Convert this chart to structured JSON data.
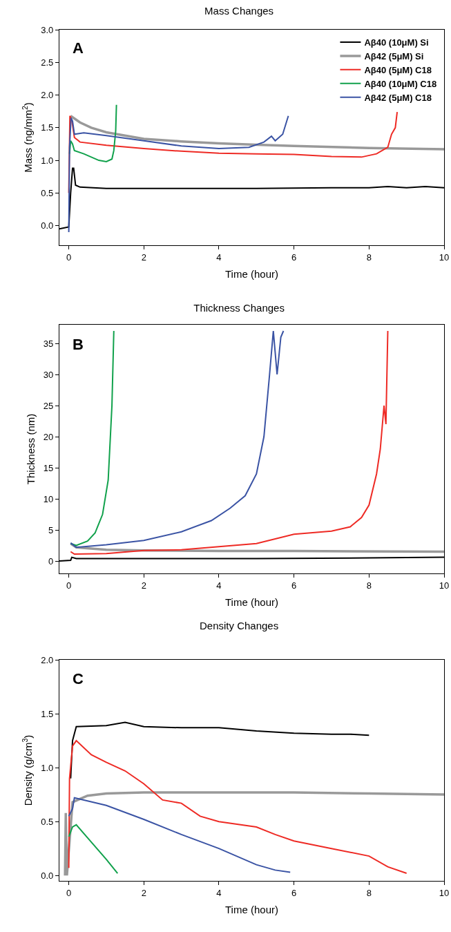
{
  "chart_data": [
    {
      "type": "line",
      "title": "Mass Changes",
      "xlabel": "Time (hour)",
      "ylabel": "Mass (ng/mm$^{2}$)",
      "annotations": [
        "A"
      ],
      "legend": "top right",
      "grid": false,
      "xlim": [
        -0.25,
        10
      ],
      "xticks": [
        0,
        2,
        4,
        6,
        8,
        10
      ],
      "ylim": [
        -0.3,
        3.0
      ],
      "yticks": [
        {
          "value": 0,
          "label": "0.0"
        },
        0.5,
        {
          "value": 1,
          "label": "1.0"
        },
        1.5,
        {
          "value": 2,
          "label": "2.0"
        },
        2.5,
        {
          "value": 3,
          "label": "3.0"
        }
      ],
      "series": [
        {
          "name": "Aβ40 (10μM) Si",
          "color": "#000000",
          "x": [
            -0.25,
            0,
            0.05,
            0.1,
            0.13,
            0.18,
            0.3,
            1,
            3,
            5,
            7,
            8,
            8.5,
            9,
            9.5,
            10
          ],
          "values": [
            -0.05,
            -0.02,
            0.5,
            0.88,
            0.88,
            0.62,
            0.59,
            0.57,
            0.57,
            0.57,
            0.58,
            0.58,
            0.6,
            0.58,
            0.6,
            0.58
          ]
        },
        {
          "name": "Aβ42 (5μM) Si",
          "color": "#999999",
          "x": [
            0.05,
            0.3,
            0.6,
            1,
            2,
            3,
            4,
            5,
            6,
            8,
            10
          ],
          "values": [
            1.68,
            1.58,
            1.5,
            1.43,
            1.33,
            1.29,
            1.26,
            1.24,
            1.22,
            1.19,
            1.17
          ]
        },
        {
          "name": "Aβ40 (5μM) C18",
          "color": "#ee2a24",
          "x": [
            0,
            0.03,
            0.08,
            0.15,
            0.3,
            1,
            2,
            3,
            4,
            5,
            6,
            7,
            7.8,
            8.2,
            8.5,
            8.6,
            8.7,
            8.75
          ],
          "values": [
            0.5,
            1.68,
            1.62,
            1.35,
            1.28,
            1.23,
            1.18,
            1.14,
            1.11,
            1.1,
            1.09,
            1.06,
            1.05,
            1.1,
            1.2,
            1.4,
            1.5,
            1.74
          ]
        },
        {
          "name": "Aβ40 (10μM) C18",
          "color": "#10a14b",
          "x": [
            0.02,
            0.05,
            0.1,
            0.15,
            0.4,
            0.8,
            1.0,
            1.15,
            1.2,
            1.25,
            1.27
          ],
          "values": [
            1.1,
            1.3,
            1.25,
            1.15,
            1.1,
            1.0,
            0.98,
            1.02,
            1.15,
            1.45,
            1.85
          ]
        },
        {
          "name": "Aβ42 (5μM) C18",
          "color": "#3a53a4",
          "x": [
            0,
            0.02,
            0.06,
            0.1,
            0.15,
            0.4,
            1,
            2,
            3,
            4,
            4.8,
            5.2,
            5.4,
            5.5,
            5.7,
            5.85
          ],
          "values": [
            -0.1,
            1.2,
            1.65,
            1.6,
            1.4,
            1.42,
            1.38,
            1.3,
            1.22,
            1.18,
            1.2,
            1.28,
            1.37,
            1.3,
            1.4,
            1.68
          ]
        }
      ]
    },
    {
      "type": "line",
      "title": "Thickness Changes",
      "xlabel": "Time (hour)",
      "ylabel": "Thickness (nm)",
      "annotations": [
        "B"
      ],
      "grid": false,
      "xlim": [
        -0.25,
        10
      ],
      "xticks": [
        0,
        2,
        4,
        6,
        8,
        10
      ],
      "ylim": [
        -2,
        38
      ],
      "yticks": [
        0,
        5,
        10,
        15,
        20,
        25,
        30,
        35
      ],
      "series": [
        {
          "color": "#000000",
          "x": [
            -0.25,
            0.05,
            0.08,
            0.2,
            2,
            5,
            8,
            10
          ],
          "values": [
            0,
            0.1,
            0.6,
            0.4,
            0.4,
            0.4,
            0.5,
            0.6
          ]
        },
        {
          "color": "#999999",
          "x": [
            0.05,
            0.2,
            1,
            2,
            4,
            6,
            10
          ],
          "values": [
            2.8,
            2.2,
            1.8,
            1.7,
            1.6,
            1.6,
            1.5
          ]
        },
        {
          "color": "#ee2a24",
          "x": [
            0.05,
            0.15,
            1,
            2,
            3,
            4,
            5,
            6,
            7,
            7.5,
            7.8,
            8.0,
            8.2,
            8.3,
            8.4,
            8.45,
            8.5
          ],
          "values": [
            1.5,
            1.1,
            1.2,
            1.7,
            1.8,
            2.3,
            2.8,
            4.3,
            4.8,
            5.5,
            7,
            9,
            14,
            18,
            25,
            22,
            37
          ]
        },
        {
          "color": "#10a14b",
          "x": [
            0.05,
            0.2,
            0.5,
            0.7,
            0.9,
            1.05,
            1.15,
            1.2
          ],
          "values": [
            2.8,
            2.5,
            3.2,
            4.5,
            7.5,
            13,
            25,
            37
          ]
        },
        {
          "color": "#3a53a4",
          "x": [
            0.05,
            0.2,
            1,
            2,
            3,
            3.8,
            4.3,
            4.7,
            5.0,
            5.2,
            5.35,
            5.45,
            5.55,
            5.65,
            5.72
          ],
          "values": [
            2.9,
            2.2,
            2.6,
            3.3,
            4.7,
            6.5,
            8.5,
            10.5,
            14,
            20,
            30,
            37,
            30,
            36,
            37
          ]
        }
      ]
    },
    {
      "type": "line",
      "title": "Density Changes",
      "xlabel": "Time (hour)",
      "ylabel": "Density (g/cm$^{3}$)",
      "annotations": [
        "C"
      ],
      "grid": false,
      "xlim": [
        -0.25,
        10
      ],
      "xticks": [
        0,
        2,
        4,
        6,
        8,
        10
      ],
      "ylim": [
        -0.05,
        2.0
      ],
      "yticks": [
        {
          "value": 0,
          "label": "0.0"
        },
        0.5,
        {
          "value": 1,
          "label": "1.0"
        },
        1.5,
        {
          "value": 2,
          "label": "2.0"
        }
      ],
      "series": [
        {
          "color": "#000000",
          "x": [
            0.05,
            0.1,
            0.2,
            1,
            1.5,
            2,
            3,
            4,
            5,
            6,
            7,
            7.5,
            8
          ],
          "values": [
            0.9,
            1.25,
            1.38,
            1.39,
            1.42,
            1.38,
            1.37,
            1.37,
            1.34,
            1.32,
            1.31,
            1.31,
            1.3
          ]
        },
        {
          "color": "#999999",
          "x": [
            -0.1,
            -0.08,
            -0.05,
            0.1,
            0.5,
            1,
            2,
            4,
            6,
            8,
            10
          ],
          "values": [
            0.0,
            0.58,
            0.0,
            0.68,
            0.74,
            0.76,
            0.77,
            0.77,
            0.77,
            0.76,
            0.75
          ]
        },
        {
          "color": "#ee2a24",
          "x": [
            0.0,
            0.02,
            0.1,
            0.2,
            0.6,
            1,
            1.5,
            2,
            2.5,
            3,
            3.5,
            4,
            5,
            5.5,
            6,
            7,
            8,
            8.5,
            9
          ],
          "values": [
            0.07,
            0.9,
            1.2,
            1.25,
            1.12,
            1.05,
            0.97,
            0.85,
            0.7,
            0.67,
            0.55,
            0.5,
            0.45,
            0.38,
            0.32,
            0.25,
            0.18,
            0.08,
            0.02
          ]
        },
        {
          "color": "#10a14b",
          "x": [
            0.0,
            0.1,
            0.2,
            0.5,
            1.0,
            1.3
          ],
          "values": [
            0.36,
            0.45,
            0.47,
            0.35,
            0.15,
            0.02
          ]
        },
        {
          "color": "#3a53a4",
          "x": [
            0.0,
            0.1,
            0.15,
            1,
            2,
            3,
            4,
            5,
            5.5,
            5.9
          ],
          "values": [
            0.55,
            0.62,
            0.72,
            0.65,
            0.52,
            0.38,
            0.25,
            0.1,
            0.05,
            0.03
          ]
        }
      ]
    }
  ]
}
